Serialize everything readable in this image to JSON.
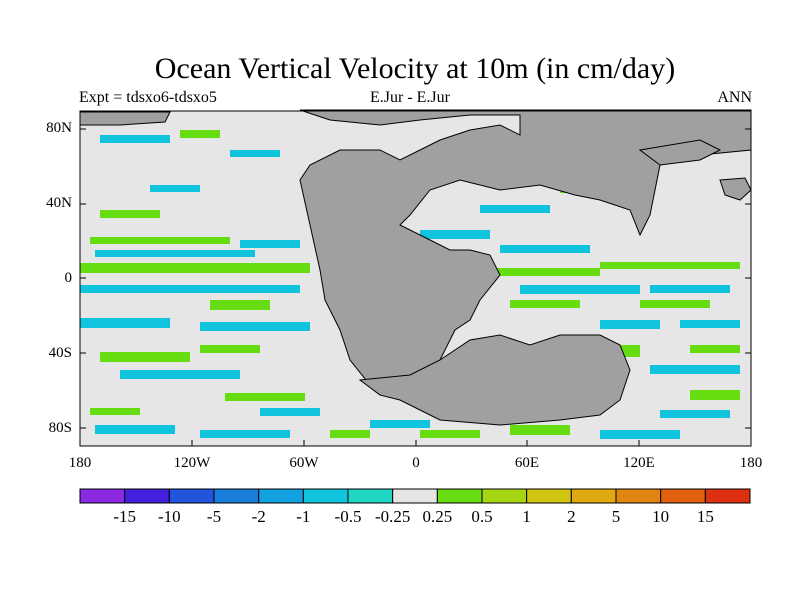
{
  "title": "Ocean Vertical Velocity at 10m (in cm/day)",
  "subtitle_left": "Expt = tdsxo6-tdsxo5",
  "subtitle_center": "E.Jur - E.Jur",
  "subtitle_right": "ANN",
  "lat_labels": [
    "80N",
    "40N",
    "0",
    "40S",
    "80S"
  ],
  "lon_labels": [
    "180",
    "120W",
    "60W",
    "0",
    "60E",
    "120E",
    "180"
  ],
  "colorbar": {
    "labels": [
      "-15",
      "-10",
      "-5",
      "-2",
      "-1",
      "-0.5",
      "-0.25",
      "0.25",
      "0.5",
      "1",
      "2",
      "5",
      "10",
      "15"
    ],
    "colors": [
      "#8a2be2",
      "#4422dd",
      "#2255dd",
      "#1a7ddc",
      "#11a0e0",
      "#11c4dd",
      "#20d6c4",
      "#e6e6e6",
      "#66dd11",
      "#a6d612",
      "#d0c510",
      "#e0a810",
      "#e08510",
      "#e06010",
      "#dd3010"
    ]
  },
  "colors": {
    "land": "#a0a0a0",
    "ocean_neutral": "#e6e6e6",
    "upwelling_weak": "#66dd11",
    "downwelling_weak": "#11c4dd"
  }
}
